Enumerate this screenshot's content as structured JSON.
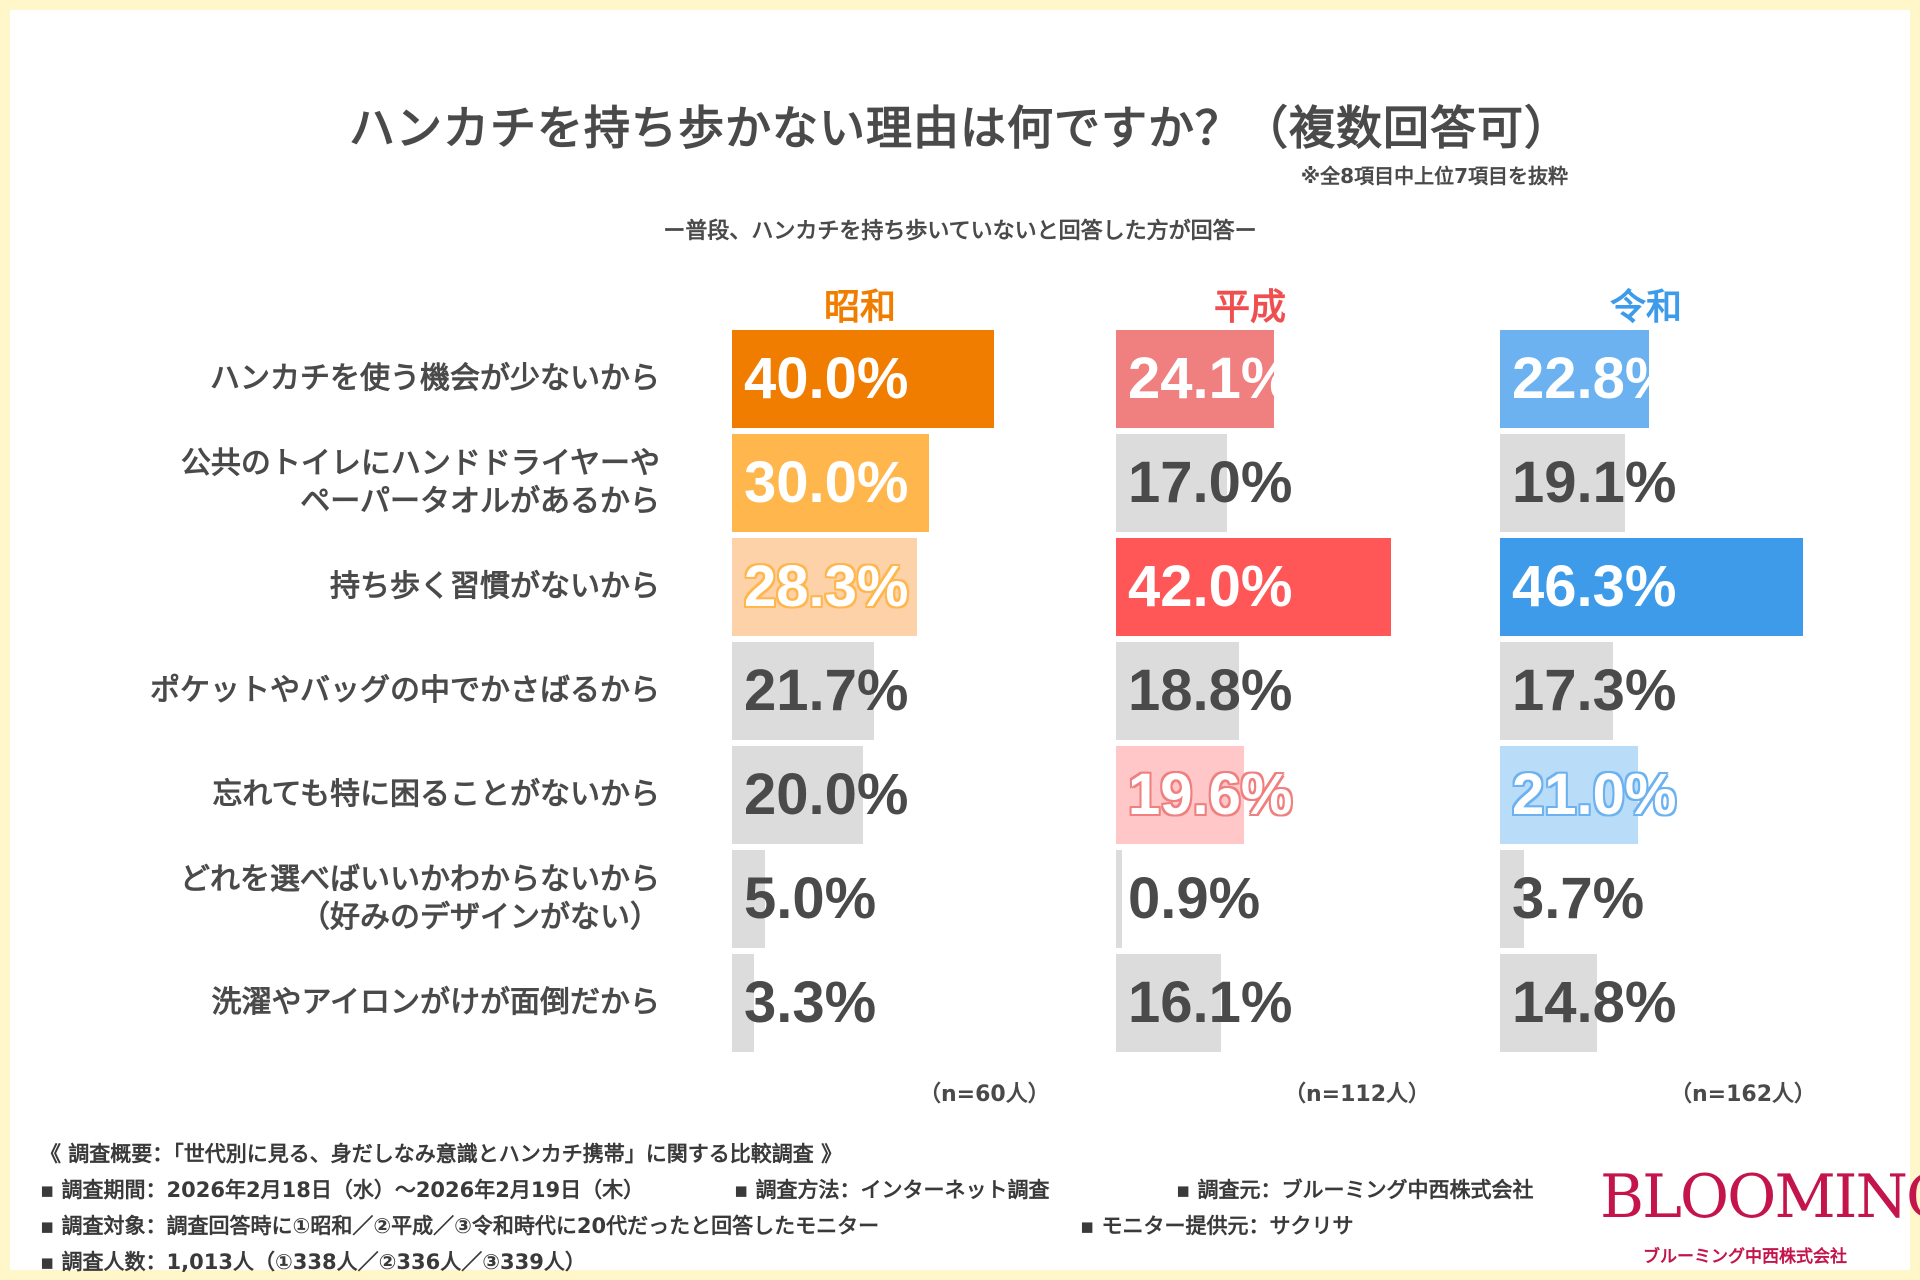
{
  "header": {
    "title": "ハンカチを持ち歩かない理由は何ですか？（複数回答可）",
    "note": "※全8項目中上位7項目を抜粋",
    "subtitle": "ー普段、ハンカチを持ち歩いていないと回答した方が回答ー"
  },
  "chart_data": {
    "type": "bar",
    "orientation": "horizontal",
    "title": "ハンカチを持ち歩かない理由は何ですか？（複数回答可）",
    "unit": "%",
    "categories": [
      "ハンカチを使う機会が少ないから",
      "公共のトイレにハンドドライヤーや\nペーパータオルがあるから",
      "持ち歩く習慣がないから",
      "ポケットやバッグの中でかさばるから",
      "忘れても特に困ることがないから",
      "どれを選べばいいかわからないから\n（好みのデザインがない）",
      "洗濯やアイロンがけが面倒だから"
    ],
    "series": [
      {
        "name": "昭和",
        "n_label": "（n=60人）",
        "header_color": "#f07d00",
        "values": [
          40.0,
          30.0,
          28.3,
          21.7,
          20.0,
          5.0,
          3.3
        ],
        "labels": [
          "40.0%",
          "30.0%",
          "28.3%",
          "21.7%",
          "20.0%",
          "5.0%",
          "3.3%"
        ],
        "colors": [
          "#f07d00",
          "#ffb74d",
          "#fdd2a8",
          "#dcdcdc",
          "#dcdcdc",
          "#dcdcdc",
          "#dcdcdc"
        ],
        "label_styles": [
          "light",
          "light",
          "outline",
          "dark",
          "dark",
          "dark",
          "dark"
        ],
        "label_outline": "#ffb74d"
      },
      {
        "name": "平成",
        "n_label": "（n=112人）",
        "header_color": "#f04f4f",
        "values": [
          24.1,
          17.0,
          42.0,
          18.8,
          19.6,
          0.9,
          16.1
        ],
        "labels": [
          "24.1%",
          "17.0%",
          "42.0%",
          "18.8%",
          "19.6%",
          "0.9%",
          "16.1%"
        ],
        "colors": [
          "#f07f7f",
          "#dcdcdc",
          "#ff5757",
          "#dcdcdc",
          "#ffc7c7",
          "#dcdcdc",
          "#dcdcdc"
        ],
        "label_styles": [
          "light",
          "dark",
          "light",
          "dark",
          "outline",
          "dark",
          "dark"
        ],
        "label_outline": "#f07f7f"
      },
      {
        "name": "令和",
        "n_label": "（n=162人）",
        "header_color": "#3d9be9",
        "values": [
          22.8,
          19.1,
          46.3,
          17.3,
          21.0,
          3.7,
          14.8
        ],
        "labels": [
          "22.8%",
          "19.1%",
          "46.3%",
          "17.3%",
          "21.0%",
          "3.7%",
          "14.8%"
        ],
        "colors": [
          "#6cb2f0",
          "#dcdcdc",
          "#3d9be9",
          "#dcdcdc",
          "#b9dcf8",
          "#dcdcdc",
          "#dcdcdc"
        ],
        "label_styles": [
          "light",
          "dark",
          "light",
          "dark",
          "outline",
          "dark",
          "dark"
        ],
        "label_outline": "#6cb2f0"
      }
    ]
  },
  "footer": {
    "overview": "《 調査概要：「世代別に見る、身だしなみ意識とハンカチ携帯」に関する比較調査 》",
    "period": "▪ 調査期間：2026年2月18日（水）～2026年2月19日（木）",
    "method": "▪ 調査方法：インターネット調査",
    "source": "▪ 調査元：ブルーミング中西株式会社",
    "target": "▪ 調査対象：調査回答時に①昭和／②平成／③令和時代に20代だったと回答したモニター",
    "provider": "▪ モニター提供元：サクリサ",
    "count": "▪ 調査人数：1,013人（①338人／②336人／③339人）"
  },
  "logo": {
    "main": "BLOOMING",
    "sub": "ブルーミング中西株式会社"
  }
}
